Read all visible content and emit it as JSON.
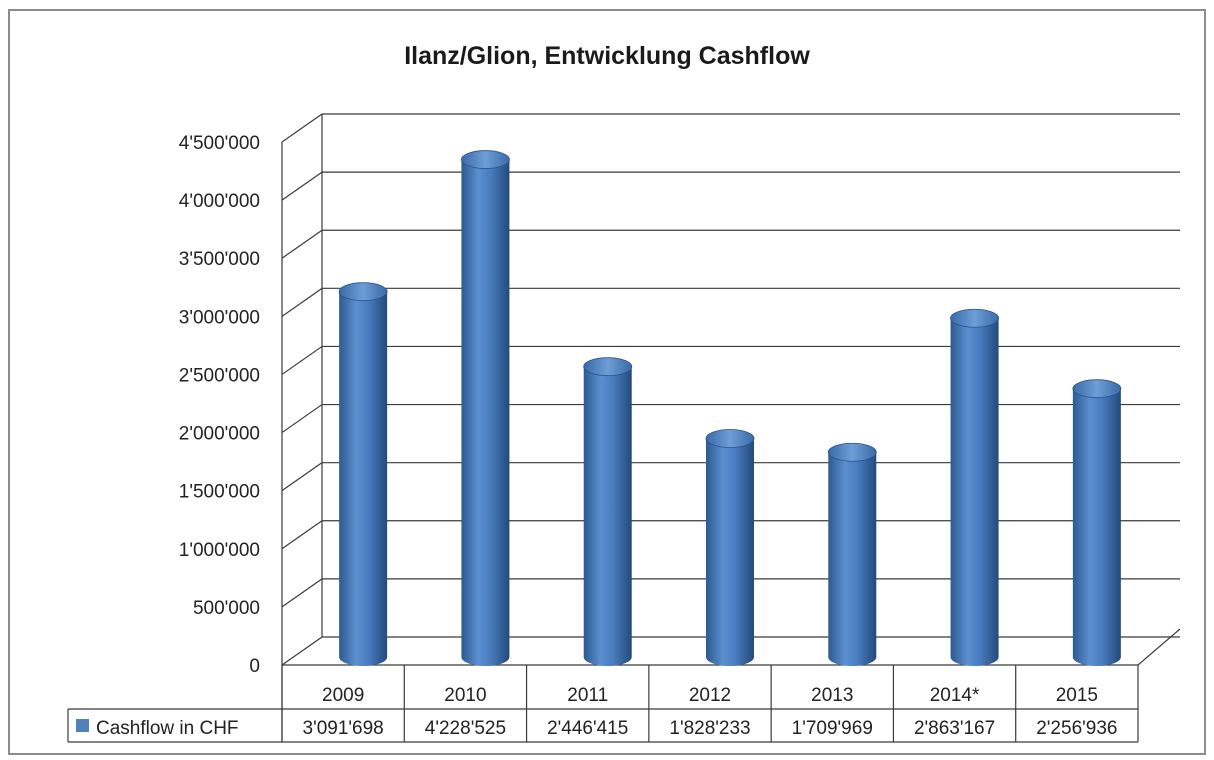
{
  "chart_data": {
    "type": "bar",
    "title": "Ilanz/Glion, Entwicklung Cashflow",
    "categories": [
      "2009",
      "2010",
      "2011",
      "2012",
      "2013",
      "2014*",
      "2015"
    ],
    "series": [
      {
        "name": "Cashflow in CHF",
        "values": [
          3091698,
          4228525,
          2446415,
          1828233,
          1709969,
          2863167,
          2256936
        ],
        "labels": [
          "3'091'698",
          "4'228'525",
          "2'446'415",
          "1'828'233",
          "1'709'969",
          "2'863'167",
          "2'256'936"
        ],
        "color": "#4f81bd"
      }
    ],
    "ylim": [
      0,
      4500000
    ],
    "y_ticks": [
      0,
      500000,
      1000000,
      1500000,
      2000000,
      2500000,
      3000000,
      3500000,
      4000000,
      4500000
    ],
    "y_tick_labels": [
      "0",
      "500'000",
      "1'000'000",
      "1'500'000",
      "2'000'000",
      "2'500'000",
      "3'000'000",
      "3'500'000",
      "4'000'000",
      "4'500'000"
    ],
    "grid": true,
    "legend": "data-table",
    "bar_shape": "3d-cylinder"
  }
}
